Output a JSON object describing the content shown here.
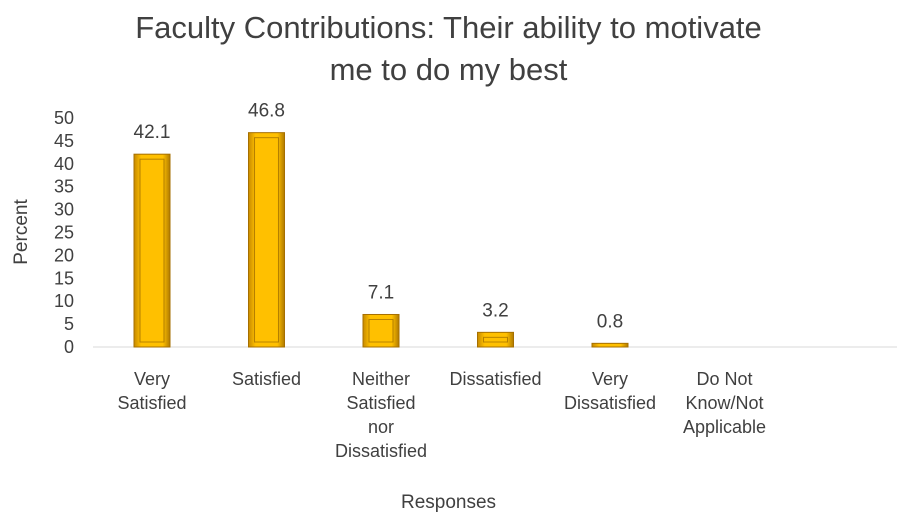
{
  "chart_data": {
    "type": "bar",
    "title_lines": [
      "Faculty Contributions:  Their ability to motivate",
      "me to do my best"
    ],
    "xlabel": "Responses",
    "ylabel": "Percent",
    "ylim": [
      0,
      50
    ],
    "ytick_step": 5,
    "grid": false,
    "legend": "none",
    "bar_color": "#ffc000",
    "categories": [
      [
        "Very",
        "Satisfied"
      ],
      [
        "Satisfied"
      ],
      [
        "Neither",
        "Satisfied",
        "nor",
        "Dissatisfied"
      ],
      [
        "Dissatisfied"
      ],
      [
        "Very",
        "Dissatisfied"
      ],
      [
        "Do Not",
        "Know/Not",
        "Applicable"
      ]
    ],
    "values": [
      42.1,
      46.8,
      7.1,
      3.2,
      0.8,
      null
    ],
    "data_labels": [
      "42.1",
      "46.8",
      "7.1",
      "3.2",
      "0.8",
      ""
    ]
  }
}
